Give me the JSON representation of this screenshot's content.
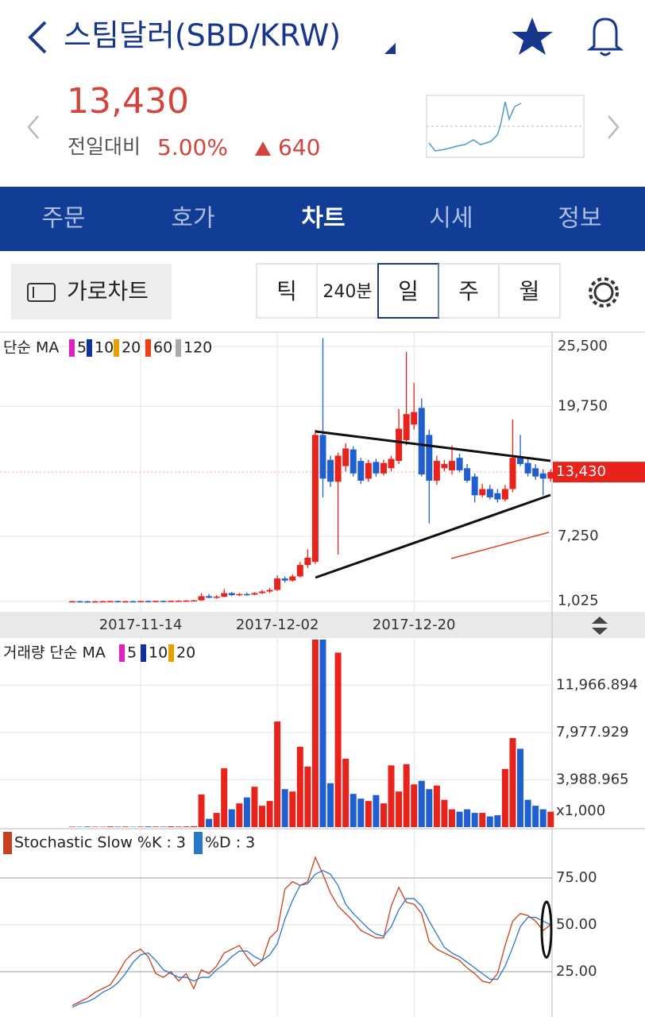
{
  "header": {
    "title": "스팀달러(SBD/KRW)",
    "price": "13,430",
    "change_label": "전일대비",
    "change_rate": "5.00%",
    "change_amount": "640"
  },
  "tabs": [
    "주문",
    "호가",
    "차트",
    "시세",
    "정보"
  ],
  "toolbar": {
    "landscape_button": "가로차트",
    "periods": [
      "틱",
      "240분",
      "일",
      "주",
      "월"
    ]
  },
  "price_chart": {
    "type": "candlestick",
    "legend_title": "단순 MA",
    "ma_periods": [
      {
        "label": "5",
        "color": "#e020c0"
      },
      {
        "label": "10",
        "color": "#1030a0"
      },
      {
        "label": "20",
        "color": "#e8a000"
      },
      {
        "label": "60",
        "color": "#f04010"
      },
      {
        "label": "120",
        "color": "#aaaaaa"
      }
    ],
    "categories": [
      null,
      null,
      null,
      null,
      null,
      null,
      null,
      null,
      null,
      "2017-11-14",
      null,
      null,
      null,
      null,
      null,
      null,
      null,
      null,
      null,
      null,
      null,
      null,
      null,
      null,
      null,
      null,
      null,
      "2017-12-02",
      null,
      null,
      null,
      null,
      null,
      null,
      null,
      null,
      null,
      null,
      null,
      null,
      null,
      null,
      null,
      null,
      null,
      "2017-12-20",
      null,
      null,
      null,
      null,
      null,
      null,
      null,
      null,
      null,
      null,
      null,
      null,
      null,
      null,
      null,
      null,
      null,
      null
    ],
    "open": [
      1000,
      1010,
      1000,
      990,
      1000,
      1010,
      1020,
      1000,
      1010,
      1000,
      1030,
      1020,
      1040,
      1030,
      1050,
      1060,
      1080,
      1100,
      1500,
      1350,
      1450,
      1800,
      1600,
      1700,
      1650,
      1800,
      1950,
      2100,
      3200,
      3000,
      3400,
      4500,
      4800,
      17000,
      14600,
      12500,
      14000,
      15600,
      14500,
      12800,
      14400,
      13300,
      13800,
      14500,
      16500,
      18000,
      19600,
      17000,
      12600,
      13800,
      13600,
      14800,
      13800,
      13000,
      11200,
      11800,
      11400,
      10800,
      11800,
      14800,
      14300,
      13800,
      13300,
      12800
    ],
    "high": [
      1060,
      1070,
      1060,
      1050,
      1060,
      1070,
      1080,
      1060,
      1070,
      1060,
      1090,
      1080,
      1100,
      1090,
      1110,
      1120,
      1150,
      1800,
      1700,
      1600,
      2200,
      1900,
      1800,
      1850,
      1900,
      2100,
      2300,
      3500,
      3400,
      3600,
      4800,
      6000,
      17500,
      26300,
      15000,
      15300,
      16200,
      15900,
      14800,
      14600,
      14700,
      14600,
      15000,
      19500,
      25000,
      22000,
      20500,
      17500,
      15000,
      14600,
      16000,
      15200,
      14200,
      13300,
      12300,
      12200,
      11800,
      12200,
      18500,
      17000,
      14800,
      14200,
      13700,
      13700
    ],
    "low": [
      970,
      980,
      970,
      960,
      970,
      980,
      990,
      970,
      980,
      970,
      1000,
      990,
      1010,
      1000,
      1020,
      1030,
      1050,
      1050,
      1300,
      1250,
      1400,
      1500,
      1500,
      1550,
      1600,
      1700,
      1800,
      2000,
      2800,
      2900,
      3300,
      4200,
      4600,
      11000,
      12000,
      5500,
      13500,
      13000,
      12300,
      12500,
      13000,
      13100,
      13500,
      14200,
      16000,
      17500,
      13000,
      8500,
      12200,
      13500,
      13200,
      13400,
      12400,
      10500,
      11000,
      10800,
      10500,
      10600,
      11500,
      14000,
      13000,
      12700,
      11200,
      12500
    ],
    "close": [
      1010,
      1000,
      990,
      1000,
      1010,
      1020,
      1000,
      1010,
      1000,
      1030,
      1020,
      1040,
      1030,
      1050,
      1060,
      1080,
      1100,
      1500,
      1350,
      1450,
      1800,
      1600,
      1700,
      1650,
      1800,
      1950,
      2100,
      3200,
      3000,
      3400,
      4500,
      5200,
      17000,
      12800,
      12500,
      15000,
      15700,
      13300,
      12600,
      14300,
      13300,
      14300,
      14700,
      17600,
      19000,
      19200,
      13200,
      12600,
      14500,
      14200,
      14500,
      13600,
      12600,
      11200,
      11800,
      11000,
      10800,
      11800,
      14800,
      14200,
      13300,
      13000,
      12800,
      13430
    ],
    "up_color": "#e8231c",
    "down_color": "#1f5fd0",
    "ylim": [
      0,
      26500
    ],
    "yticks": [
      {
        "value": 25500,
        "label": "25,500"
      },
      {
        "value": 19750,
        "label": "19,750"
      },
      {
        "value": 7250,
        "label": "7,250"
      },
      {
        "value": 1025,
        "label": "1,025"
      }
    ]
  },
  "volume_chart": {
    "type": "bar",
    "legend_title": "거래량 단순 MA",
    "ma_periods": [
      {
        "label": "5",
        "color": "#e020c0"
      },
      {
        "label": "10",
        "color": "#1030a0"
      },
      {
        "label": "20",
        "color": "#e8a000"
      }
    ],
    "values": [
      40,
      30,
      50,
      40,
      30,
      60,
      40,
      50,
      30,
      40,
      60,
      50,
      40,
      70,
      50,
      60,
      80,
      2750,
      700,
      1200,
      4960,
      1500,
      2000,
      2500,
      3400,
      1800,
      2200,
      8900,
      3200,
      3000,
      6770,
      5100,
      15800,
      15800,
      3700,
      14700,
      5760,
      2800,
      2400,
      2200,
      2700,
      2000,
      5200,
      3000,
      5300,
      3600,
      3900,
      3200,
      3500,
      2300,
      1500,
      1300,
      1500,
      1200,
      1200,
      900,
      1000,
      4900,
      7500,
      6600,
      2300,
      1800,
      1500,
      1300
    ],
    "ylim": [
      0,
      15800
    ],
    "yticks": [
      {
        "value": 11966.894,
        "label": "11,966.894"
      },
      {
        "value": 7977.929,
        "label": "7,977.929"
      },
      {
        "value": 3988.965,
        "label": "3,988.965"
      }
    ],
    "unit_label": "x1,000"
  },
  "stochastic_chart": {
    "type": "line",
    "series": [
      {
        "name": "Stochastic Slow %K : 3",
        "color": "#c8401c",
        "values": [
          7,
          9,
          11,
          14,
          16,
          18,
          24,
          31,
          35,
          37,
          33,
          24,
          22,
          25,
          20,
          24,
          16,
          26,
          24,
          28,
          35,
          37,
          39,
          33,
          28,
          31,
          43,
          47,
          69,
          73,
          71,
          73,
          86,
          77,
          67,
          60,
          56,
          52,
          47,
          45,
          43,
          43,
          60,
          70,
          62,
          61,
          56,
          41,
          37,
          35,
          33,
          31,
          27,
          24,
          20,
          19,
          24,
          39,
          52,
          56,
          55,
          52,
          47,
          50
        ]
      },
      {
        "name": "%D : 3",
        "color": "#2a78c8",
        "values": [
          6,
          8,
          9,
          11,
          14,
          16,
          19,
          24,
          30,
          34,
          35,
          31,
          26,
          24,
          22,
          22,
          20,
          22,
          22,
          26,
          29,
          33,
          36,
          36,
          33,
          31,
          34,
          40,
          53,
          63,
          71,
          72,
          77,
          79,
          77,
          71,
          61,
          56,
          52,
          48,
          45,
          44,
          49,
          58,
          64,
          64,
          60,
          52,
          45,
          38,
          35,
          33,
          30,
          27,
          24,
          21,
          21,
          28,
          38,
          49,
          54,
          54,
          52,
          50
        ]
      }
    ],
    "ylim": [
      0,
      100
    ],
    "yticks": [
      {
        "value": 75,
        "label": "75.00"
      },
      {
        "value": 50,
        "label": "50.00"
      },
      {
        "value": 25,
        "label": "25.00"
      }
    ]
  }
}
